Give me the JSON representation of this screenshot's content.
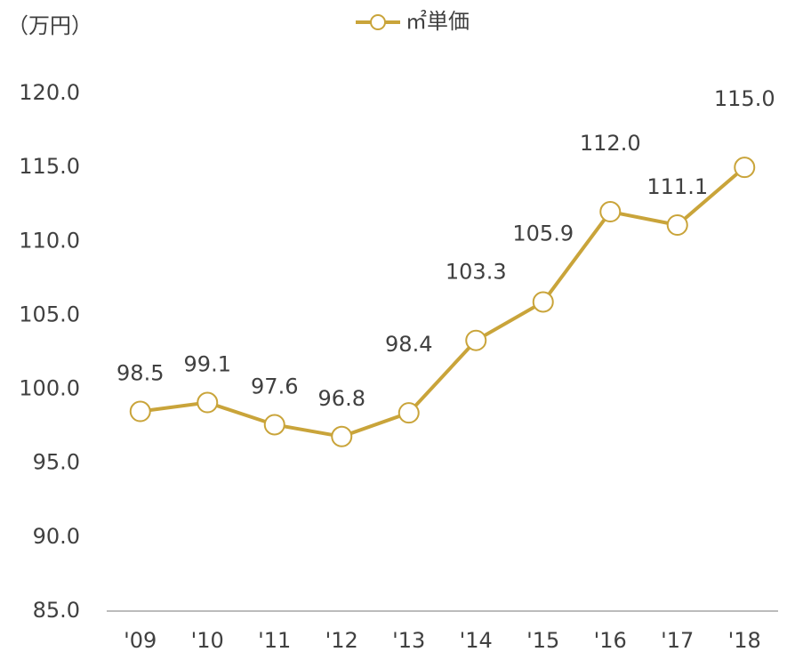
{
  "chart_data": {
    "type": "line",
    "y_unit_label": "（万円）",
    "categories": [
      "'09",
      "'10",
      "'11",
      "'12",
      "'13",
      "'14",
      "'15",
      "'16",
      "'17",
      "'18"
    ],
    "series": [
      {
        "name": "㎡単価",
        "color": "#c9a43a",
        "values": [
          98.5,
          99.1,
          97.6,
          96.8,
          98.4,
          103.3,
          105.9,
          112.0,
          111.1,
          115.0
        ],
        "value_labels": [
          "98.5",
          "99.1",
          "97.6",
          "96.8",
          "98.4",
          "103.3",
          "105.9",
          "112.0",
          "111.1",
          "115.0"
        ]
      }
    ],
    "ylim": [
      85,
      120
    ],
    "yticks": [
      {
        "value": 85,
        "label": "85.0"
      },
      {
        "value": 90,
        "label": "90.0"
      },
      {
        "value": 95,
        "label": "95.0"
      },
      {
        "value": 100,
        "label": "100.0"
      },
      {
        "value": 105,
        "label": "105.0"
      },
      {
        "value": 110,
        "label": "110.0"
      },
      {
        "value": 115,
        "label": "115.0"
      },
      {
        "value": 120,
        "label": "120.0"
      }
    ],
    "grid": false,
    "legend": "top"
  }
}
